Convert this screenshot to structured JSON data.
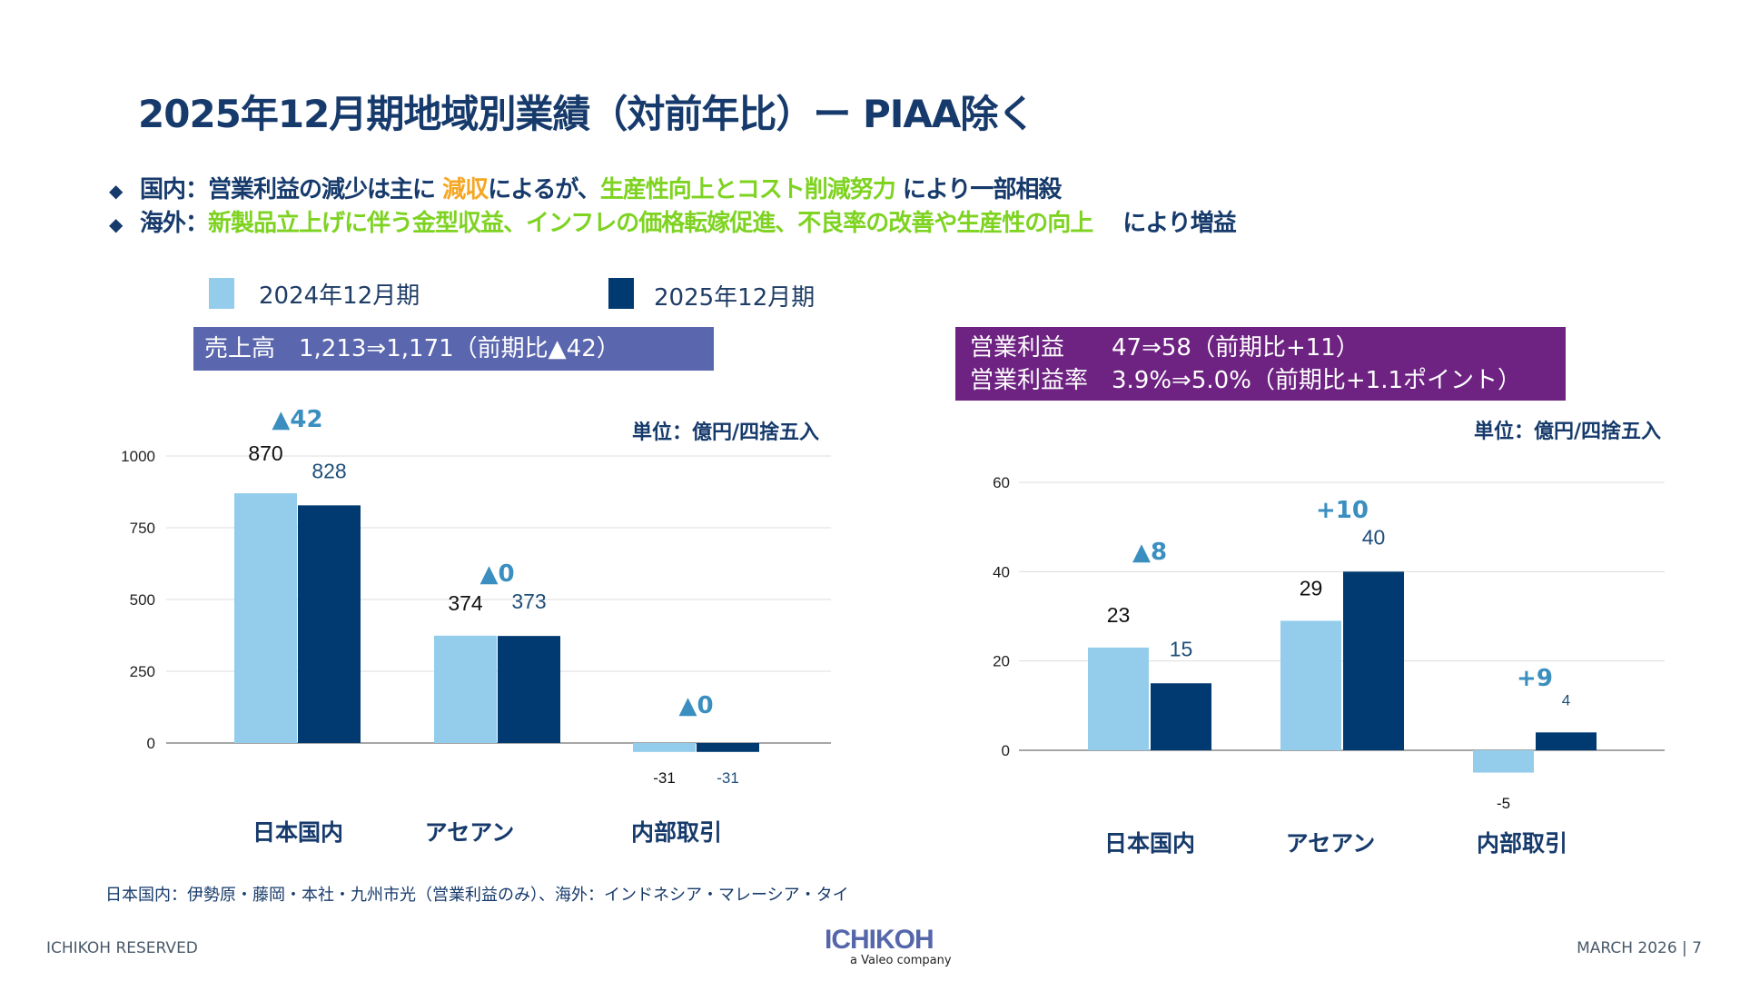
{
  "title": "2025年12月期地域別業績（対前年比）ー PIAA除く",
  "bullets": [
    {
      "label": "国内：",
      "parts": [
        {
          "text": "営業利益の減少は主に ",
          "color": "navy"
        },
        {
          "text": "減収",
          "color": "orange"
        },
        {
          "text": "によるが、",
          "color": "navy"
        },
        {
          "text": "生産性向上とコスト削減努力",
          "color": "green"
        },
        {
          "text": " により一部相殺",
          "color": "navy"
        }
      ]
    },
    {
      "label": "海外：",
      "parts": [
        {
          "text": "新製品立上げに伴う金型収益、インフレの価格転嫁促進、不良率の改善や生産性の向上",
          "color": "green"
        },
        {
          "text": "　 により増益",
          "color": "navy"
        }
      ]
    }
  ],
  "legend": [
    {
      "label": "2024年12月期",
      "color": "#93cdeb"
    },
    {
      "label": "2025年12月期",
      "color": "#003a70"
    }
  ],
  "sales_box": "売上高　1,213⇒1,171（前期比▲42）",
  "op_box": [
    "営業利益　　47⇒58（前期比+11）",
    "営業利益率　3.9%⇒5.0%（前期比+1.1ポイント）"
  ],
  "unit_label": "単位：億円/四捨五入",
  "footnote": "日本国内：伊勢原・藤岡・本社・九州市光（営業利益のみ）、海外：インドネシア・マレーシア・タイ",
  "footer": {
    "left": "ICHIKOH RESERVED",
    "logo": "ICHIKOH",
    "logo_sub": "a Valeo company",
    "right": "MARCH 2026  |  7"
  },
  "colors": {
    "navy": "#163a6b",
    "light_bar": "#93cdeb",
    "dark_bar": "#003a70",
    "delta": "#3a8fc0",
    "orange": "#f5a623",
    "green": "#7ed321"
  },
  "chart_data": [
    {
      "type": "bar",
      "title": "売上高",
      "categories": [
        "日本国内",
        "アセアン",
        "内部取引"
      ],
      "series": [
        {
          "name": "2024年12月期",
          "values": [
            870,
            374,
            -31
          ]
        },
        {
          "name": "2025年12月期",
          "values": [
            828,
            373,
            -31
          ]
        }
      ],
      "deltas": [
        "▲42",
        "▲0",
        "▲0"
      ],
      "yticks": [
        0,
        250,
        500,
        750,
        1000
      ],
      "ylim": [
        -31,
        1000
      ],
      "grid": true
    },
    {
      "type": "bar",
      "title": "営業利益",
      "categories": [
        "日本国内",
        "アセアン",
        "内部取引"
      ],
      "series": [
        {
          "name": "2024年12月期",
          "values": [
            23,
            29,
            -5
          ]
        },
        {
          "name": "2025年12月期",
          "values": [
            15,
            40,
            4
          ]
        }
      ],
      "deltas": [
        "▲8",
        "+10",
        "+9"
      ],
      "yticks": [
        0,
        20,
        40,
        60
      ],
      "ylim": [
        -5,
        60
      ],
      "grid": true
    }
  ]
}
